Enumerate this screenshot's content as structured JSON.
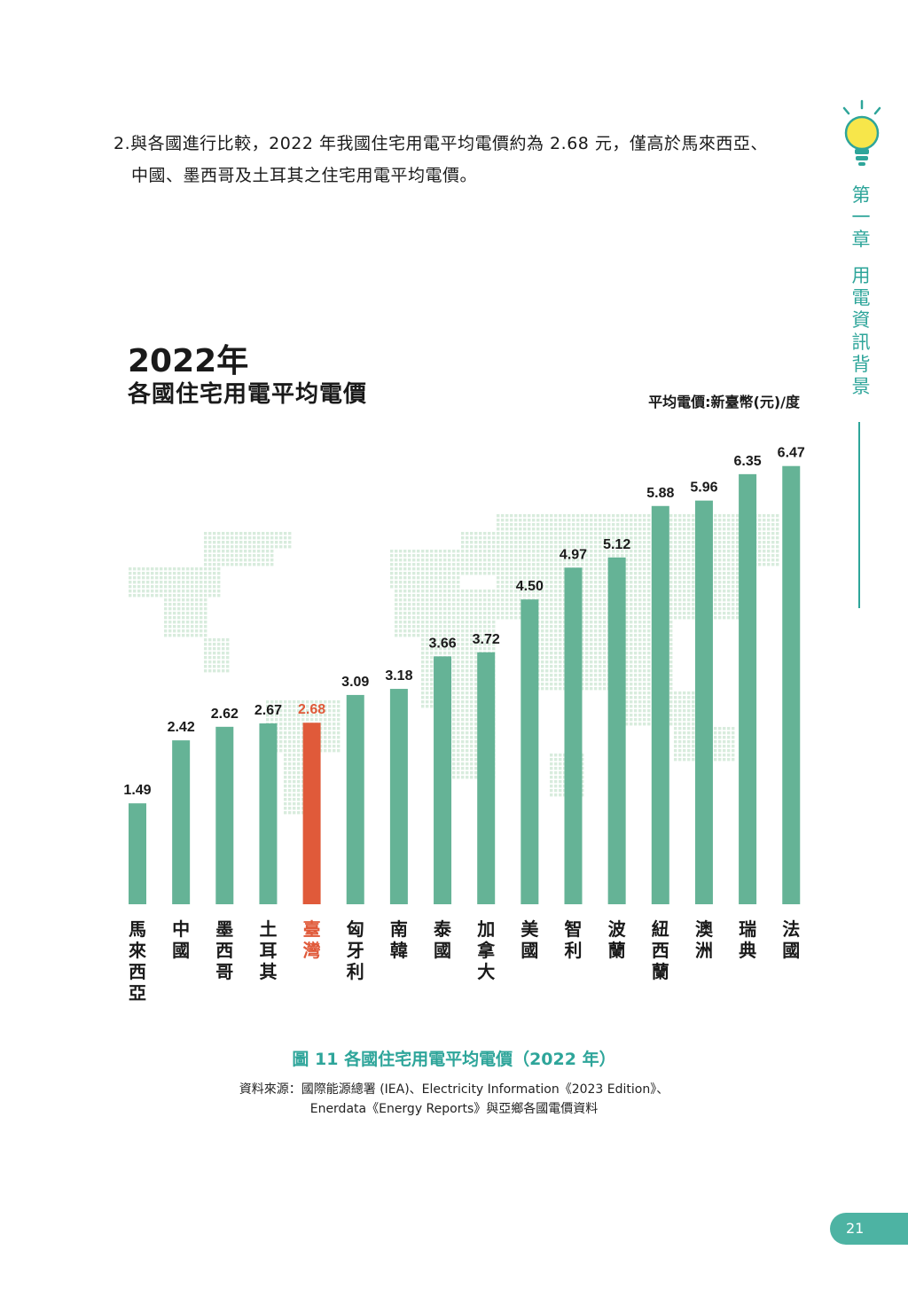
{
  "intro": {
    "line1": "2.與各國進行比較，2022 年我國住宅用電平均電價約為 2.68 元，僅高於馬來西亞、",
    "line2": "中國、墨西哥及土耳其之住宅用電平均電價。"
  },
  "side_tab": {
    "chapter": [
      "第",
      "一",
      "章"
    ],
    "title": [
      "用",
      "電",
      "資",
      "訊",
      "背",
      "景"
    ],
    "accent_color": "#2ea59a"
  },
  "chart_data": {
    "type": "bar",
    "title": "2022年",
    "subtitle": "各國住宅用電平均電價",
    "unit_label": "平均電價:新臺幣(元)/度",
    "categories": [
      "馬來西亞",
      "中國",
      "墨西哥",
      "土耳其",
      "臺灣",
      "匈牙利",
      "南韓",
      "泰國",
      "加拿大",
      "美國",
      "智利",
      "波蘭",
      "紐西蘭",
      "澳洲",
      "瑞典",
      "法國"
    ],
    "values": [
      1.49,
      2.42,
      2.62,
      2.67,
      2.68,
      3.09,
      3.18,
      3.66,
      3.72,
      4.5,
      4.97,
      5.12,
      5.88,
      5.96,
      6.35,
      6.47
    ],
    "value_labels": [
      "1.49",
      "2.42",
      "2.62",
      "2.67",
      "2.68",
      "3.09",
      "3.18",
      "3.66",
      "3.72",
      "4.50",
      "4.97",
      "5.12",
      "5.88",
      "5.96",
      "6.35",
      "6.47"
    ],
    "highlight_category": "臺灣",
    "bar_color": "#65b396",
    "highlight_color": "#e05a3a",
    "background_motif": "dotted-world-map",
    "grid": false,
    "ylim": [
      0,
      7
    ]
  },
  "caption": {
    "figure": "圖 11 各國住宅用電平均電價（2022 年）",
    "source_line1": "資料來源：國際能源總署 (IEA)、Electricity Information《2023 Edition》、",
    "source_line2": "Enerdata《Energy Reports》與亞鄉各國電價資料"
  },
  "page": {
    "number": "21",
    "tab_color": "#4db3a3"
  }
}
